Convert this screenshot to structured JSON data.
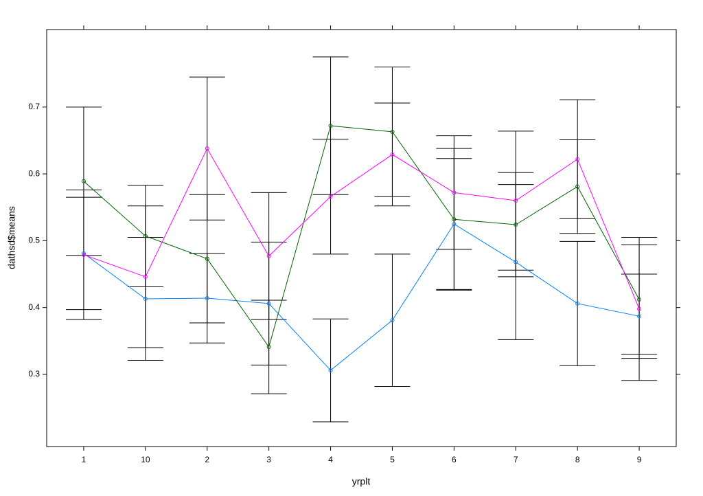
{
  "chart_data": {
    "type": "line",
    "x_label": "yrplt",
    "y_label": "dathsd$means",
    "categories": [
      "1",
      "10",
      "2",
      "3",
      "4",
      "5",
      "6",
      "7",
      "8",
      "9"
    ],
    "series": [
      {
        "color": "#0080ff",
        "values": [
          0.481,
          0.413,
          0.414,
          0.406,
          0.306,
          0.381,
          0.525,
          0.468,
          0.406,
          0.387
        ],
        "errors": [
          0.084,
          0.092,
          0.067,
          0.092,
          0.077,
          0.099,
          0.098,
          0.116,
          0.093,
          0.063
        ]
      },
      {
        "color": "#006400",
        "values": [
          0.589,
          0.507,
          0.473,
          0.341,
          0.672,
          0.663,
          0.532,
          0.524,
          0.581,
          0.412
        ],
        "errors": [
          0.111,
          0.076,
          0.096,
          0.07,
          0.103,
          0.097,
          0.106,
          0.078,
          0.07,
          0.082
        ]
      },
      {
        "color": "#ff00ff",
        "values": [
          0.479,
          0.446,
          0.638,
          0.477,
          0.566,
          0.629,
          0.572,
          0.56,
          0.622,
          0.398
        ],
        "errors": [
          0.097,
          0.106,
          0.107,
          0.095,
          0.086,
          0.077,
          0.085,
          0.104,
          0.089,
          0.107
        ]
      }
    ],
    "errorbar_color": "#000000",
    "ylim": [
      0.192,
      0.816
    ],
    "yticks": [
      0.3,
      0.4,
      0.5,
      0.6,
      0.7
    ],
    "grid": false
  }
}
